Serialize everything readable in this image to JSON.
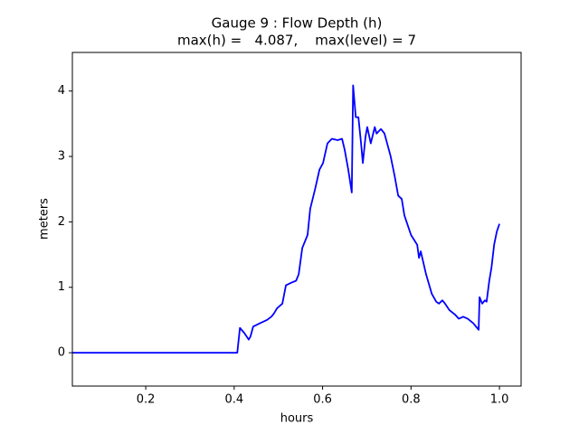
{
  "chart_data": {
    "type": "line",
    "title": "Gauge 9 : Flow Depth (h)",
    "subtitle": "max(h) =   4.087,    max(level) = 7",
    "xlabel": "hours",
    "ylabel": "meters",
    "xlim": [
      0.034,
      1.049
    ],
    "ylim": [
      -0.51,
      4.59
    ],
    "xticks": [
      0.2,
      0.4,
      0.6,
      0.8,
      {
        "value": 1.0,
        "label": "1.0"
      }
    ],
    "yticks": [
      0,
      1,
      2,
      3,
      4
    ],
    "series": [
      {
        "name": "h",
        "color": "#0000ff",
        "x": [
          0.034,
          0.407,
          0.413,
          0.423,
          0.433,
          0.437,
          0.443,
          0.458,
          0.474,
          0.484,
          0.49,
          0.497,
          0.509,
          0.517,
          0.529,
          0.54,
          0.546,
          0.554,
          0.566,
          0.572,
          0.583,
          0.593,
          0.601,
          0.611,
          0.621,
          0.634,
          0.644,
          0.65,
          0.658,
          0.666,
          0.669,
          0.675,
          0.681,
          0.687,
          0.691,
          0.697,
          0.701,
          0.709,
          0.718,
          0.722,
          0.732,
          0.74,
          0.746,
          0.754,
          0.763,
          0.771,
          0.779,
          0.785,
          0.8,
          0.814,
          0.818,
          0.822,
          0.834,
          0.847,
          0.857,
          0.863,
          0.871,
          0.877,
          0.887,
          0.9,
          0.908,
          0.918,
          0.928,
          0.941,
          0.953,
          0.955,
          0.961,
          0.967,
          0.971,
          0.977,
          0.982,
          0.988,
          0.994,
          1.0
        ],
        "values": [
          0,
          0,
          0.38,
          0.3,
          0.2,
          0.25,
          0.4,
          0.45,
          0.5,
          0.55,
          0.6,
          0.68,
          0.75,
          1.03,
          1.07,
          1.1,
          1.2,
          1.6,
          1.8,
          2.2,
          2.5,
          2.8,
          2.9,
          3.2,
          3.27,
          3.25,
          3.27,
          3.1,
          2.8,
          2.45,
          4.087,
          3.6,
          3.6,
          3.2,
          2.9,
          3.3,
          3.45,
          3.2,
          3.45,
          3.35,
          3.42,
          3.35,
          3.2,
          3.0,
          2.7,
          2.4,
          2.35,
          2.1,
          1.8,
          1.65,
          1.45,
          1.55,
          1.2,
          0.9,
          0.78,
          0.75,
          0.8,
          0.75,
          0.65,
          0.58,
          0.52,
          0.55,
          0.52,
          0.45,
          0.35,
          0.85,
          0.75,
          0.8,
          0.78,
          1.1,
          1.3,
          1.65,
          1.85,
          1.97
        ]
      }
    ]
  }
}
